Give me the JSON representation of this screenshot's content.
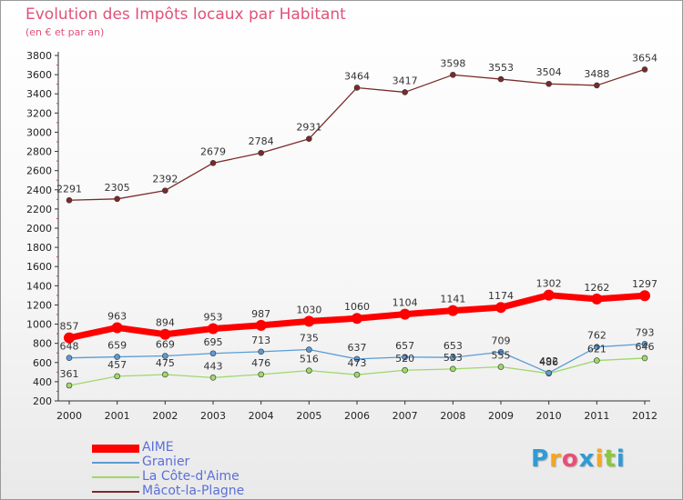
{
  "chart_data": {
    "type": "line",
    "title": "Evolution des Impôts locaux par Habitant",
    "subtitle": "(en € et par an)",
    "xlabel": "",
    "ylabel": "",
    "categories": [
      "2000",
      "2001",
      "2002",
      "2003",
      "2004",
      "2005",
      "2006",
      "2007",
      "2008",
      "2009",
      "2010",
      "2011",
      "2012"
    ],
    "ylim": [
      200,
      3800
    ],
    "yticks": [
      200,
      400,
      600,
      800,
      1000,
      1200,
      1400,
      1600,
      1800,
      2000,
      2200,
      2400,
      2600,
      2800,
      3000,
      3200,
      3400,
      3600,
      3800
    ],
    "grid": false,
    "legend_position": "bottom-left",
    "series": [
      {
        "name": "AIME",
        "values": [
          857,
          963,
          894,
          953,
          987,
          1030,
          1060,
          1104,
          1141,
          1174,
          1302,
          1262,
          1297
        ],
        "color": "#ff0000",
        "emphasis": true
      },
      {
        "name": "Granier",
        "values": [
          648,
          659,
          669,
          695,
          713,
          735,
          637,
          657,
          653,
          709,
          492,
          762,
          793
        ],
        "color": "#5b9bd5",
        "emphasis": false
      },
      {
        "name": "La Côte-d'Aime",
        "values": [
          361,
          457,
          475,
          443,
          476,
          516,
          473,
          520,
          533,
          555,
          486,
          621,
          646
        ],
        "color": "#9fd86b",
        "emphasis": false
      },
      {
        "name": "Mâcot-la-Plagne",
        "values": [
          2291,
          2305,
          2392,
          2679,
          2784,
          2931,
          3464,
          3417,
          3598,
          3553,
          3504,
          3488,
          3654
        ],
        "color": "#7a2a2a",
        "emphasis": false
      }
    ]
  },
  "logo": {
    "letters": [
      "P",
      "r",
      "o",
      "x",
      "i",
      "t",
      "i"
    ],
    "colors": [
      "#2f9bd6",
      "#f5a623",
      "#e94e77",
      "#2f9bd6",
      "#f5a623",
      "#8cc63f",
      "#2f9bd6"
    ]
  }
}
